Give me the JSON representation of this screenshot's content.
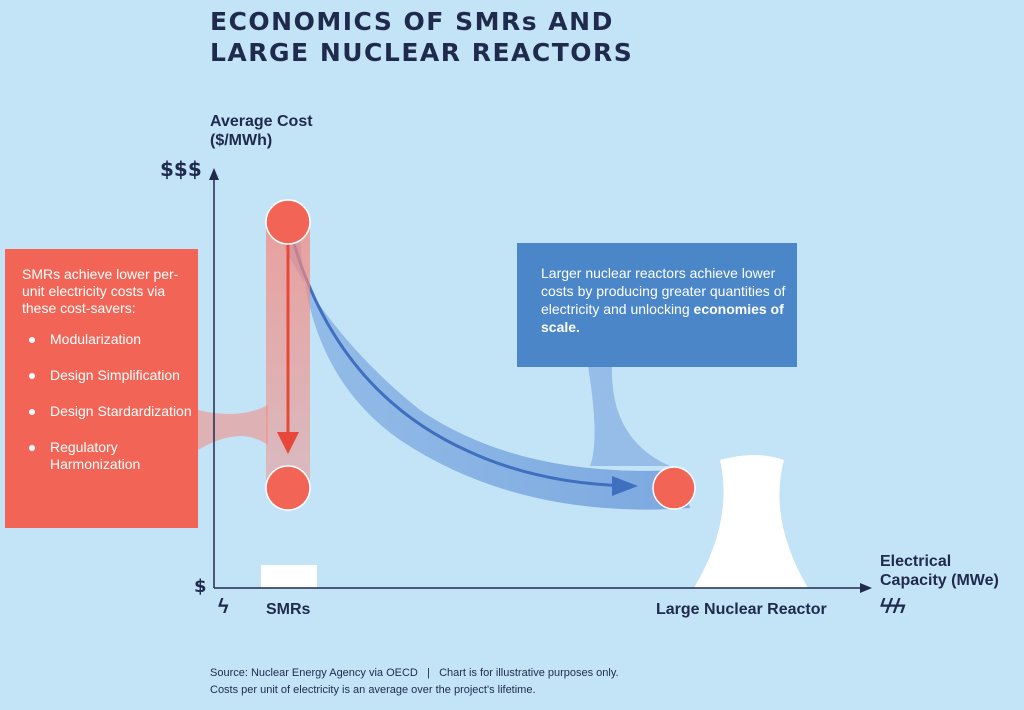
{
  "title": {
    "line1": "ECONOMICS OF SMRs AND",
    "line2": "LARGE NUCLEAR REACTORS"
  },
  "y_axis": {
    "label_line1": "Average Cost",
    "label_line2": "($/MWh)",
    "max_label": "$$$",
    "min_label": "$"
  },
  "x_axis": {
    "label_line1": "Electrical",
    "label_line2": "Capacity (MWe)",
    "small_label": "SMRs",
    "large_label": "Large Nuclear Reactor",
    "small_icon": "lightning-bolt-icon",
    "large_icon": "triple-lightning-bolt-icon"
  },
  "smr_callout": {
    "intro": "SMRs achieve lower per-unit electricity costs via these cost-savers:",
    "items": [
      {
        "label": "Modularization"
      },
      {
        "label": "Design Simplification"
      },
      {
        "label": "Design Stardardization"
      },
      {
        "label": "Regulatory Harmonization"
      }
    ]
  },
  "large_callout": {
    "text": "Larger nuclear reactors achieve lower costs by producing greater quantities of electricity and unlocking",
    "bold": "economies of scale."
  },
  "footer": {
    "line1": "Source: Nuclear Energy Agency via OECD   |   Chart is for illustrative purposes only.",
    "line2": "Costs per unit of electricity is an average over the project's lifetime."
  },
  "colors": {
    "background": "#c3e3f6",
    "red": "#f26556",
    "blue": "#4b86c8",
    "text": "#1f2a4c"
  }
}
